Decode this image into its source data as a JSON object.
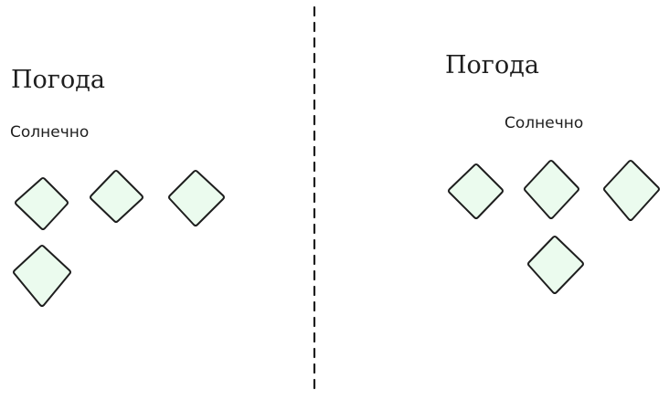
{
  "left_panel": {
    "title": "Погода",
    "subtitle": "Солнечно"
  },
  "right_panel": {
    "title": "Погода",
    "subtitle": "Солнечно"
  },
  "colors": {
    "tile_fill": "#ebfbee",
    "stroke": "#1e1e1e"
  }
}
